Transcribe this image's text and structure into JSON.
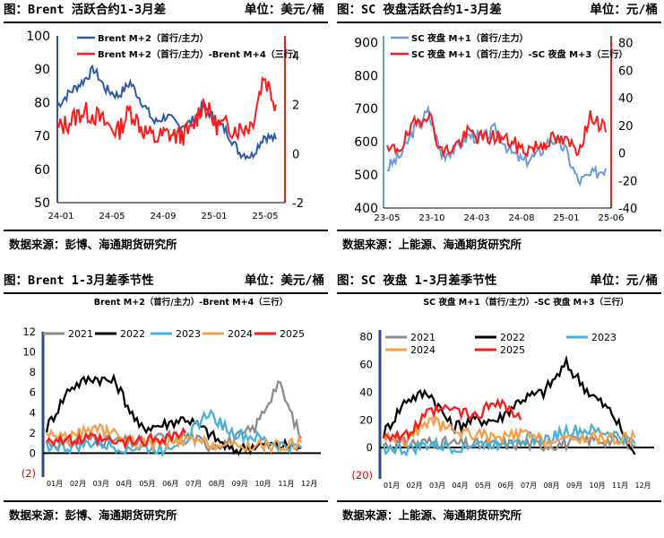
{
  "colors": {
    "blue": "#2e5aa8",
    "red": "#ff1a1a",
    "lightblue": "#6a9bd8",
    "y2021": "#8c8c8c",
    "y2022": "#000000",
    "y2023": "#45b0d8",
    "y2024": "#f5a04a",
    "y2025": "#ff1a1a"
  },
  "panels": [
    {
      "title": "图：Brent 活跃合约1-3月差",
      "unit": "单位：美元/桶",
      "source": "数据来源：彭博、海通期货研究所"
    },
    {
      "title": "图：SC 夜盘活跃合约1-3月差",
      "unit": "单位：元/桶",
      "source": "数据来源：上能源、海通期货研究所"
    },
    {
      "title": "图：Brent 1-3月差季节性",
      "unit": "单位：美元/桶",
      "source": "数据来源：彭博、海通期货研究所"
    },
    {
      "title": "图：SC 夜盘 1-3月差季节性",
      "unit": "单位：元/桶",
      "source": "数据来源：上能源、海通期货研究所"
    }
  ],
  "chart_data": [
    {
      "type": "line",
      "x_ticks": [
        "24-01",
        "24-05",
        "24-09",
        "25-01",
        "25-05"
      ],
      "y_left": {
        "ticks": [
          50,
          60,
          70,
          80,
          90,
          100
        ],
        "lim": [
          50,
          100
        ]
      },
      "y_right": {
        "ticks": [
          -2,
          0,
          2,
          4
        ],
        "lim": [
          -2,
          4.8
        ]
      },
      "series": [
        {
          "name": "Brent M+2（首行/主力）",
          "axis": "left",
          "x": [
            "24-01",
            "24-02",
            "24-03",
            "24-04",
            "24-05",
            "24-06",
            "24-07",
            "24-08",
            "24-09",
            "24-10",
            "24-11",
            "24-12",
            "25-01",
            "25-02",
            "25-03",
            "25-04",
            "25-05",
            "25-06",
            "25-07"
          ],
          "values": [
            79,
            83,
            86,
            90,
            84,
            82,
            86,
            80,
            74,
            76,
            73,
            74,
            79,
            75,
            71,
            65,
            64,
            70,
            69
          ]
        },
        {
          "name": "Brent M+2（首行/主力）-Brent M+4（三行）",
          "axis": "right",
          "x": [
            "24-01",
            "24-02",
            "24-03",
            "24-04",
            "24-05",
            "24-06",
            "24-07",
            "24-08",
            "24-09",
            "24-10",
            "24-11",
            "24-12",
            "25-01",
            "25-02",
            "25-03",
            "25-04",
            "25-05",
            "25-06",
            "25-07"
          ],
          "values": [
            1.0,
            1.3,
            1.7,
            1.6,
            1.2,
            0.9,
            1.8,
            1.0,
            0.6,
            0.8,
            0.7,
            0.9,
            2.1,
            1.2,
            1.1,
            1.0,
            1.2,
            3.2,
            2.0
          ]
        }
      ]
    },
    {
      "type": "line",
      "x_ticks": [
        "23-05",
        "23-10",
        "24-03",
        "24-08",
        "25-01",
        "25-06"
      ],
      "y_left": {
        "ticks": [
          400,
          500,
          600,
          700,
          800,
          900
        ],
        "lim": [
          400,
          920
        ]
      },
      "y_right": {
        "ticks": [
          -40,
          -20,
          0,
          20,
          40,
          60,
          80
        ],
        "lim": [
          -40,
          85
        ]
      },
      "series": [
        {
          "name": "SC 夜盘 M+1（首行/主力）",
          "axis": "left",
          "x": [
            "23-05",
            "23-07",
            "23-09",
            "23-10",
            "23-12",
            "24-02",
            "24-03",
            "24-05",
            "24-07",
            "24-08",
            "24-10",
            "24-12",
            "25-01",
            "25-03",
            "25-04",
            "25-06",
            "25-07"
          ],
          "values": [
            520,
            560,
            640,
            690,
            560,
            580,
            620,
            610,
            640,
            570,
            540,
            560,
            610,
            580,
            480,
            500,
            520
          ]
        },
        {
          "name": "SC 夜盘 M+1（首行/主力）-SC 夜盘 M+3（三行）",
          "axis": "right",
          "x": [
            "23-05",
            "23-07",
            "23-09",
            "23-10",
            "23-12",
            "24-02",
            "24-03",
            "24-05",
            "24-07",
            "24-08",
            "24-10",
            "24-12",
            "25-01",
            "25-03",
            "25-04",
            "25-06",
            "25-07"
          ],
          "values": [
            0,
            5,
            20,
            30,
            0,
            5,
            15,
            10,
            12,
            8,
            2,
            5,
            10,
            8,
            3,
            28,
            15
          ]
        }
      ]
    },
    {
      "type": "line",
      "title": "Brent M+2（首行/主力）-Brent M+4（三行）",
      "x_ticks": [
        "01月",
        "02月",
        "03月",
        "04月",
        "05月",
        "06月",
        "07月",
        "08月",
        "09月",
        "10月",
        "11月",
        "12月"
      ],
      "y": {
        "ticks": [
          "(2)",
          "0",
          "2",
          "4",
          "6",
          "8",
          "10",
          "12"
        ],
        "lim": [
          -2,
          12
        ]
      },
      "legend": "top-left",
      "months": [
        1,
        2,
        3,
        4,
        5,
        6,
        7,
        8,
        9,
        10,
        11,
        12
      ],
      "series": [
        {
          "name": "2021",
          "values": [
            1.0,
            1.0,
            1.5,
            1.2,
            1.0,
            1.6,
            1.8,
            0.8,
            1.2,
            2.5,
            7.0,
            1.5
          ]
        },
        {
          "name": "2022",
          "values": [
            2.5,
            6.5,
            7.5,
            7.0,
            2.5,
            2.8,
            3.5,
            2.0,
            0.2,
            0.8,
            0.8,
            0.5
          ]
        },
        {
          "name": "2023",
          "values": [
            0.8,
            0.5,
            1.0,
            0.6,
            0.5,
            0.4,
            1.5,
            4.0,
            2.0,
            1.5,
            0.8,
            0.5
          ]
        },
        {
          "name": "2024",
          "values": [
            2.0,
            1.5,
            2.5,
            1.8,
            1.0,
            0.8,
            1.2,
            1.0,
            0.6,
            0.8,
            0.7,
            1.0
          ]
        },
        {
          "name": "2025",
          "values": [
            1.5,
            1.2,
            1.4,
            1.0,
            1.2,
            1.5,
            2.0,
            null,
            null,
            null,
            null,
            null
          ]
        }
      ]
    },
    {
      "type": "line",
      "title": "SC 夜盘 M+1（首行/主力）-SC 夜盘 M+3（三行）",
      "x_ticks": [
        "01月",
        "02月",
        "03月",
        "04月",
        "05月",
        "06月",
        "07月",
        "08月",
        "09月",
        "10月",
        "11月",
        "12月"
      ],
      "y": {
        "ticks": [
          "(20)",
          "0",
          "20",
          "40",
          "60",
          "80"
        ],
        "lim": [
          -20,
          85
        ]
      },
      "legend": "top",
      "months": [
        1,
        2,
        3,
        4,
        5,
        6,
        7,
        8,
        9,
        10,
        11,
        12
      ],
      "series": [
        {
          "name": "2021",
          "values": [
            2,
            3,
            4,
            3,
            2,
            2,
            3,
            2,
            3,
            6,
            5,
            2
          ]
        },
        {
          "name": "2022",
          "values": [
            10,
            35,
            40,
            15,
            20,
            20,
            35,
            40,
            60,
            40,
            25,
            -5
          ]
        },
        {
          "name": "2023",
          "values": [
            0,
            -2,
            2,
            0,
            2,
            3,
            8,
            5,
            12,
            12,
            10,
            3
          ]
        },
        {
          "name": "2024",
          "values": [
            8,
            5,
            20,
            12,
            10,
            6,
            10,
            5,
            5,
            8,
            6,
            7
          ]
        },
        {
          "name": "2025",
          "values": [
            10,
            8,
            25,
            28,
            22,
            35,
            20,
            null,
            null,
            null,
            null,
            null
          ]
        }
      ]
    }
  ]
}
